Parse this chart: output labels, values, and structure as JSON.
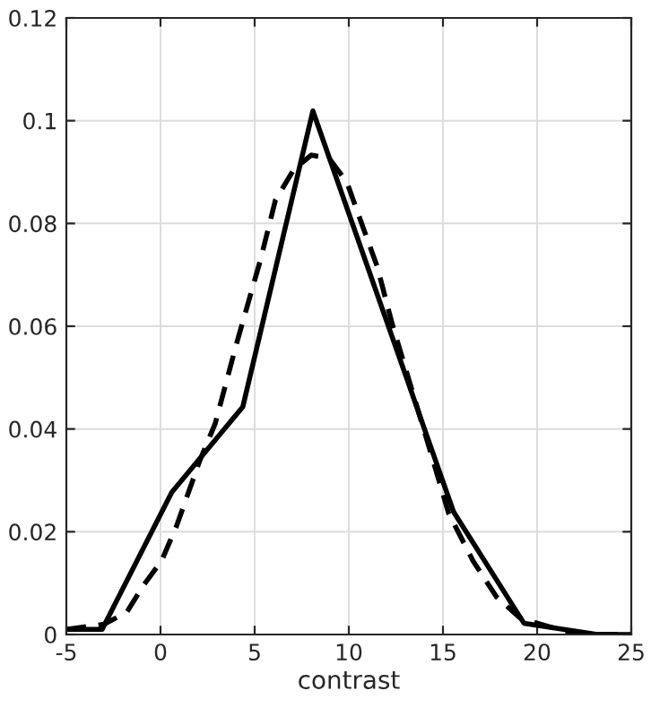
{
  "chart_data": {
    "type": "line",
    "xlabel": "contrast",
    "xlim": [
      -5,
      25
    ],
    "xticks": [
      -5,
      0,
      5,
      10,
      15,
      20,
      25
    ],
    "ylim": [
      0,
      0.12
    ],
    "yticks": [
      0,
      0.02,
      0.04,
      0.06,
      0.08,
      0.1,
      0.12
    ],
    "grid": true,
    "marker": "none",
    "series": [
      {
        "color": "#000000",
        "line_style": "solid",
        "x": [
          -5,
          -3.1,
          0.6,
          4.37,
          8.09,
          15.56,
          19.3,
          23.2,
          25
        ],
        "values": [
          0.001,
          0.001,
          0.0277,
          0.0443,
          0.1019,
          0.0239,
          0.0022,
          0,
          0
        ]
      },
      {
        "color": "#000000",
        "line_style": "dashed",
        "x": [
          -5,
          -3,
          -1.8,
          -0.9,
          0.05,
          0.84,
          2.1,
          2.9,
          4.03,
          5.3,
          6.1,
          7.06,
          8.0,
          8.95,
          9.9,
          10.7,
          11.5,
          12.3,
          13.4,
          14.35,
          15.3,
          16.6,
          17.85,
          19.1,
          21.3,
          23,
          25
        ],
        "values": [
          0.001,
          0.002,
          0.0043,
          0.0096,
          0.0143,
          0.021,
          0.034,
          0.041,
          0.0565,
          0.0728,
          0.0845,
          0.0904,
          0.0933,
          0.0927,
          0.088,
          0.0798,
          0.0717,
          0.0605,
          0.047,
          0.0354,
          0.0236,
          0.0143,
          0.0073,
          0.0032,
          0.0008,
          0,
          0
        ]
      }
    ]
  }
}
